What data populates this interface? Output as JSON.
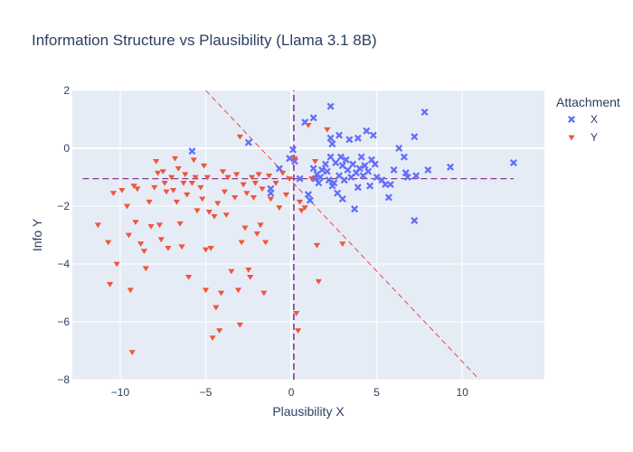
{
  "chart_data": {
    "type": "scatter",
    "title": "Information Structure vs Plausibility (Llama 3.1 8B)",
    "xlabel": "Plausibility X",
    "ylabel": "Info Y",
    "xlim": [
      -12.8,
      14.8
    ],
    "ylim": [
      -8,
      2
    ],
    "x_ticks": [
      -10,
      -5,
      0,
      5,
      10
    ],
    "x_tick_labels": [
      "−10",
      "−5",
      "0",
      "5",
      "10"
    ],
    "y_ticks": [
      2,
      0,
      -2,
      -4,
      -6,
      -8
    ],
    "y_tick_labels": [
      "2",
      "0",
      "−2",
      "−4",
      "−6",
      "−8"
    ],
    "grid": true,
    "legend_position": "top-right",
    "legend_title": "Attachment",
    "colors": {
      "X": "#636efa",
      "Y": "#ef553b",
      "plot_bg": "#e5ecf6",
      "grid": "#ffffff",
      "ref_line": "#8a3a8a",
      "diag_line": "#e8372c"
    },
    "reference_lines": {
      "horizontal_y": -1.05,
      "horizontal_x_range": [
        -12.2,
        13
      ],
      "vertical_x": 0.15,
      "vertical_y_range": [
        -8,
        2
      ],
      "diagonal": [
        [
          -5,
          2
        ],
        [
          11,
          -8
        ]
      ]
    },
    "series": [
      {
        "name": "X",
        "marker": "x",
        "points": [
          [
            2.3,
            1.45
          ],
          [
            7.8,
            1.25
          ],
          [
            1.3,
            1.05
          ],
          [
            0.8,
            0.9
          ],
          [
            -2.5,
            0.2
          ],
          [
            -5.8,
            -0.1
          ],
          [
            0.1,
            -0.05
          ],
          [
            -0.1,
            -0.35
          ],
          [
            -0.7,
            -0.7
          ],
          [
            -1.2,
            -1.4
          ],
          [
            -1.2,
            -1.55
          ],
          [
            0.2,
            -0.45
          ],
          [
            0.5,
            -1.05
          ],
          [
            1.0,
            -1.6
          ],
          [
            1.1,
            -1.8
          ],
          [
            1.3,
            -0.7
          ],
          [
            1.4,
            -1.05
          ],
          [
            1.5,
            -0.9
          ],
          [
            1.6,
            -1.2
          ],
          [
            1.7,
            -1.0
          ],
          [
            1.8,
            -0.75
          ],
          [
            2.0,
            -0.55
          ],
          [
            2.1,
            -0.8
          ],
          [
            2.2,
            -1.1
          ],
          [
            2.3,
            0.35
          ],
          [
            2.3,
            -0.3
          ],
          [
            2.4,
            0.15
          ],
          [
            2.4,
            -1.3
          ],
          [
            2.5,
            -1.2
          ],
          [
            2.6,
            -0.5
          ],
          [
            2.7,
            -1.55
          ],
          [
            2.8,
            0.45
          ],
          [
            2.8,
            -0.95
          ],
          [
            2.9,
            -0.3
          ],
          [
            3.0,
            -0.6
          ],
          [
            3.0,
            -1.75
          ],
          [
            3.1,
            -1.1
          ],
          [
            3.2,
            -0.4
          ],
          [
            3.3,
            -0.75
          ],
          [
            3.4,
            0.3
          ],
          [
            3.5,
            -1.0
          ],
          [
            3.6,
            -0.55
          ],
          [
            3.7,
            -2.1
          ],
          [
            3.8,
            -0.85
          ],
          [
            3.9,
            0.35
          ],
          [
            3.9,
            -1.35
          ],
          [
            4.0,
            -0.7
          ],
          [
            4.1,
            -0.3
          ],
          [
            4.2,
            -0.95
          ],
          [
            4.3,
            -0.6
          ],
          [
            4.4,
            0.6
          ],
          [
            4.5,
            -0.8
          ],
          [
            4.6,
            -1.3
          ],
          [
            4.7,
            -0.4
          ],
          [
            4.8,
            0.45
          ],
          [
            4.9,
            -0.55
          ],
          [
            5.0,
            -1.0
          ],
          [
            5.3,
            -1.1
          ],
          [
            5.5,
            -1.25
          ],
          [
            5.7,
            -1.7
          ],
          [
            5.8,
            -1.25
          ],
          [
            6.0,
            -0.75
          ],
          [
            6.3,
            0.0
          ],
          [
            6.6,
            -0.3
          ],
          [
            6.7,
            -0.85
          ],
          [
            6.8,
            -1.0
          ],
          [
            7.2,
            0.4
          ],
          [
            7.2,
            -2.5
          ],
          [
            7.3,
            -0.95
          ],
          [
            8.0,
            -0.75
          ],
          [
            9.3,
            -0.65
          ],
          [
            13.0,
            -0.5
          ]
        ]
      },
      {
        "name": "Y",
        "marker": "triangle-down",
        "points": [
          [
            -11.3,
            -2.65
          ],
          [
            -10.7,
            -3.25
          ],
          [
            -10.6,
            -4.7
          ],
          [
            -10.4,
            -1.55
          ],
          [
            -10.2,
            -4.0
          ],
          [
            -9.9,
            -1.45
          ],
          [
            -9.6,
            -2.0
          ],
          [
            -9.5,
            -3.0
          ],
          [
            -9.4,
            -4.9
          ],
          [
            -9.3,
            -7.05
          ],
          [
            -9.2,
            -1.3
          ],
          [
            -9.1,
            -2.55
          ],
          [
            -9.0,
            -1.4
          ],
          [
            -8.8,
            -3.3
          ],
          [
            -8.6,
            -3.55
          ],
          [
            -8.5,
            -4.15
          ],
          [
            -8.3,
            -1.85
          ],
          [
            -8.2,
            -2.7
          ],
          [
            -8.0,
            -1.35
          ],
          [
            -7.9,
            -0.45
          ],
          [
            -7.8,
            -0.85
          ],
          [
            -7.7,
            -2.65
          ],
          [
            -7.6,
            -3.15
          ],
          [
            -7.5,
            -0.8
          ],
          [
            -7.4,
            -1.2
          ],
          [
            -7.3,
            -1.5
          ],
          [
            -7.2,
            -3.45
          ],
          [
            -7.0,
            -1.0
          ],
          [
            -6.9,
            -1.45
          ],
          [
            -6.8,
            -0.35
          ],
          [
            -6.7,
            -1.85
          ],
          [
            -6.6,
            -0.7
          ],
          [
            -6.5,
            -2.6
          ],
          [
            -6.4,
            -3.4
          ],
          [
            -6.3,
            -1.2
          ],
          [
            -6.2,
            -0.9
          ],
          [
            -6.1,
            -1.6
          ],
          [
            -6.0,
            -4.45
          ],
          [
            -5.8,
            -1.2
          ],
          [
            -5.7,
            -0.4
          ],
          [
            -5.6,
            -1.0
          ],
          [
            -5.5,
            -2.15
          ],
          [
            -5.3,
            -1.35
          ],
          [
            -5.2,
            -1.75
          ],
          [
            -5.1,
            -0.6
          ],
          [
            -5.0,
            -4.9
          ],
          [
            -5.0,
            -3.5
          ],
          [
            -4.9,
            -1.0
          ],
          [
            -4.8,
            -2.2
          ],
          [
            -4.7,
            -3.45
          ],
          [
            -4.6,
            -6.55
          ],
          [
            -4.5,
            -2.35
          ],
          [
            -4.4,
            -5.5
          ],
          [
            -4.3,
            -1.9
          ],
          [
            -4.2,
            -6.3
          ],
          [
            -4.1,
            -5.0
          ],
          [
            -4.0,
            -0.8
          ],
          [
            -3.9,
            -1.5
          ],
          [
            -3.8,
            -2.3
          ],
          [
            -3.7,
            -1.0
          ],
          [
            -3.5,
            -4.25
          ],
          [
            -3.3,
            -1.7
          ],
          [
            -3.2,
            -0.9
          ],
          [
            -3.1,
            -4.9
          ],
          [
            -3.0,
            -6.1
          ],
          [
            -3.0,
            0.4
          ],
          [
            -2.9,
            -3.25
          ],
          [
            -2.8,
            -1.25
          ],
          [
            -2.7,
            -2.75
          ],
          [
            -2.6,
            -1.55
          ],
          [
            -2.5,
            -4.2
          ],
          [
            -2.4,
            -4.45
          ],
          [
            -2.3,
            -1.0
          ],
          [
            -2.2,
            -1.7
          ],
          [
            -2.1,
            -1.2
          ],
          [
            -2.0,
            -2.95
          ],
          [
            -1.9,
            -0.9
          ],
          [
            -1.8,
            -2.65
          ],
          [
            -1.7,
            -1.4
          ],
          [
            -1.6,
            -5.0
          ],
          [
            -1.5,
            -3.25
          ],
          [
            -1.3,
            -0.95
          ],
          [
            -1.2,
            -1.75
          ],
          [
            -0.9,
            -1.2
          ],
          [
            -0.7,
            -2.05
          ],
          [
            -0.5,
            -0.85
          ],
          [
            -0.3,
            -1.6
          ],
          [
            -0.1,
            -1.05
          ],
          [
            0.2,
            -0.35
          ],
          [
            0.3,
            -5.7
          ],
          [
            0.4,
            -6.3
          ],
          [
            0.5,
            -1.85
          ],
          [
            0.6,
            -2.15
          ],
          [
            0.8,
            -2.05
          ],
          [
            1.0,
            0.8
          ],
          [
            1.2,
            -1.05
          ],
          [
            1.4,
            -0.45
          ],
          [
            1.5,
            -3.35
          ],
          [
            1.6,
            -4.6
          ],
          [
            2.1,
            0.65
          ],
          [
            3.0,
            -3.3
          ]
        ]
      }
    ]
  }
}
